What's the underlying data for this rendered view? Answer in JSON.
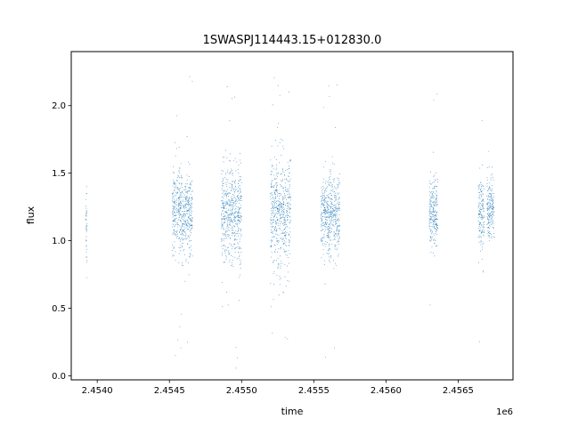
{
  "chart_data": {
    "type": "scatter",
    "title": "1SWASPJ114443.15+012830.0",
    "xlabel": "time",
    "ylabel": "flux",
    "x_offset_label": "1e6",
    "xlim": [
      2453820,
      2456880
    ],
    "ylim": [
      -0.03,
      2.4
    ],
    "x_ticks": [
      {
        "value": 2454000,
        "label": "2.4540"
      },
      {
        "value": 2454500,
        "label": "2.4545"
      },
      {
        "value": 2455000,
        "label": "2.4550"
      },
      {
        "value": 2455500,
        "label": "2.4555"
      },
      {
        "value": 2456000,
        "label": "2.4560"
      },
      {
        "value": 2456500,
        "label": "2.4565"
      }
    ],
    "y_ticks": [
      {
        "value": 0.0,
        "label": "0.0"
      },
      {
        "value": 0.5,
        "label": "0.5"
      },
      {
        "value": 1.0,
        "label": "1.0"
      },
      {
        "value": 1.5,
        "label": "1.5"
      },
      {
        "value": 2.0,
        "label": "2.0"
      }
    ],
    "grid": false,
    "marker_color": "#1f77b4",
    "seasons": [
      {
        "x_range": [
          2453920,
          2453930
        ],
        "flux_median": 1.12,
        "flux_spread": 0.15,
        "flux_range": [
          0.7,
          1.4
        ]
      },
      {
        "x_range": [
          2454520,
          2454660
        ],
        "flux_median": 1.2,
        "flux_spread": 0.15,
        "flux_range": [
          0.07,
          2.27
        ]
      },
      {
        "x_range": [
          2454860,
          2455000
        ],
        "flux_median": 1.2,
        "flux_spread": 0.18,
        "flux_range": [
          0.05,
          2.25
        ]
      },
      {
        "x_range": [
          2455200,
          2455340
        ],
        "flux_median": 1.2,
        "flux_spread": 0.2,
        "flux_range": [
          0.04,
          2.3
        ]
      },
      {
        "x_range": [
          2455550,
          2455680
        ],
        "flux_median": 1.2,
        "flux_spread": 0.15,
        "flux_range": [
          0.1,
          2.2
        ]
      },
      {
        "x_range": [
          2456300,
          2456360
        ],
        "flux_median": 1.2,
        "flux_spread": 0.13,
        "flux_range": [
          0.3,
          2.25
        ]
      },
      {
        "x_range": [
          2456640,
          2456680
        ],
        "flux_median": 1.2,
        "flux_spread": 0.14,
        "flux_range": [
          0.1,
          2.3
        ]
      },
      {
        "x_range": [
          2456700,
          2456750
        ],
        "flux_median": 1.22,
        "flux_spread": 0.12,
        "flux_range": [
          0.7,
          1.75
        ]
      }
    ]
  }
}
